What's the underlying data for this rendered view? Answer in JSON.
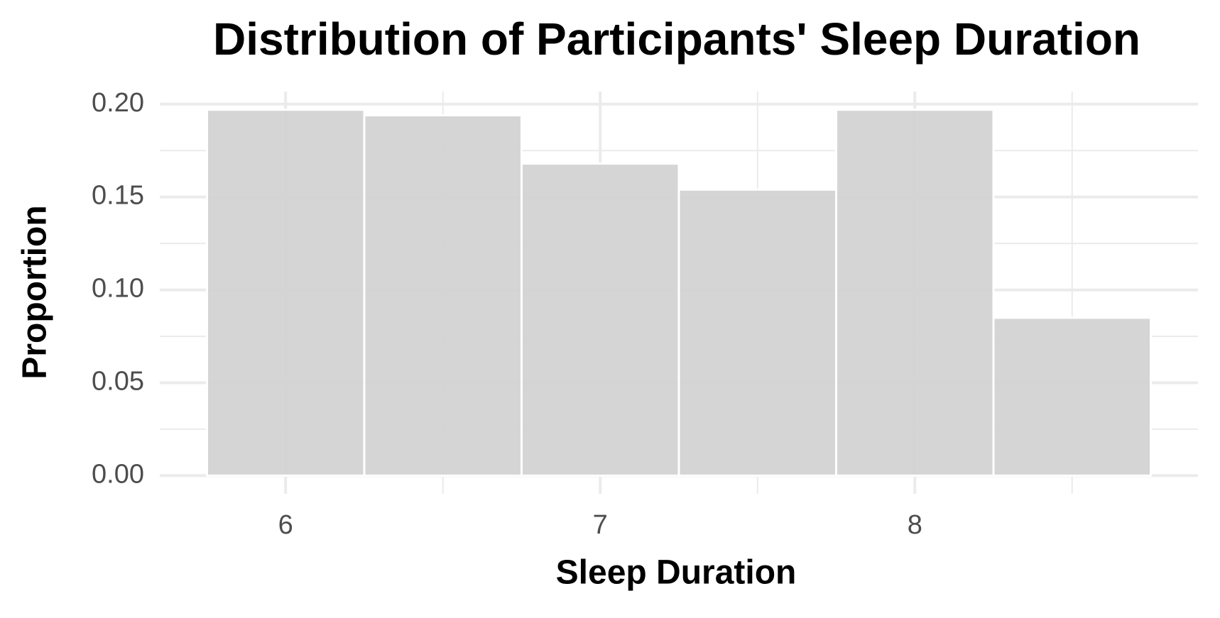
{
  "chart_data": {
    "type": "histogram",
    "title": "Distribution of Participants' Sleep Duration",
    "x_label": "Sleep Duration",
    "y_label": "Proportion",
    "bins": [
      5.75,
      6.25,
      6.75,
      7.25,
      7.75,
      8.25,
      8.75
    ],
    "values": [
      0.197,
      0.194,
      0.168,
      0.154,
      0.197,
      0.085
    ],
    "color": "#d3d3d3",
    "xlim": [
      5.6,
      8.9
    ],
    "xticks": [
      6,
      7,
      8
    ],
    "ylim": [
      -0.0098,
      0.2068
    ],
    "yticks": [
      {
        "value": 0,
        "label": "0.00"
      },
      {
        "value": 0.05,
        "label": "0.05"
      },
      {
        "value": 0.1,
        "label": "0.10"
      },
      {
        "value": 0.15,
        "label": "0.15"
      },
      {
        "value": 0.2,
        "label": "0.20"
      }
    ],
    "grid": true
  }
}
